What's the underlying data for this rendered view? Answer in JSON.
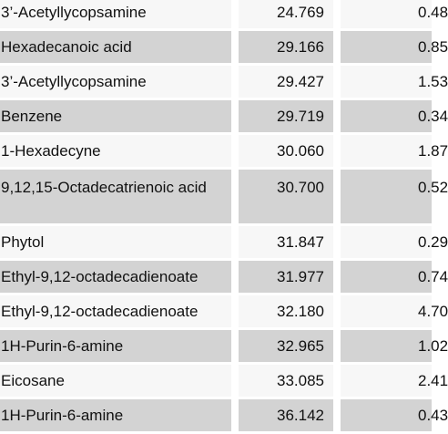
{
  "table": {
    "rows": [
      {
        "compound": "3’-Acetyllycopsamine",
        "rt": "24.769",
        "area": "0.48"
      },
      {
        "compound": "Hexadecanoic acid",
        "rt": "29.166",
        "area": "0.85"
      },
      {
        "compound": "3’-Acetyllycopsamine",
        "rt": "29.427",
        "area": "1.53"
      },
      {
        "compound": "Benzene",
        "rt": "29.719",
        "area": "0.34"
      },
      {
        "compound": "1-Hexadecyne",
        "rt": "30.060",
        "area": "1.87"
      },
      {
        "compound": "9,12,15-Octadecatrienoic acid",
        "rt": "30.700",
        "area": "0.52"
      },
      {
        "compound": "Phytol",
        "rt": "31.847",
        "area": "0.29"
      },
      {
        "compound": "Ethyl-9,12-octadecadienoate",
        "rt": "31.977",
        "area": "0.74"
      },
      {
        "compound": "Ethyl-9,12-octadecadienoate",
        "rt": "32.180",
        "area": "4.70"
      },
      {
        "compound": "1H-Purin-6-amine",
        "rt": "32.965",
        "area": "1.02"
      },
      {
        "compound": "Eicosane",
        "rt": "33.085",
        "area": "2.41"
      },
      {
        "compound": "1H-Purin-6-amine",
        "rt": "36.142",
        "area": "0.43"
      }
    ]
  }
}
